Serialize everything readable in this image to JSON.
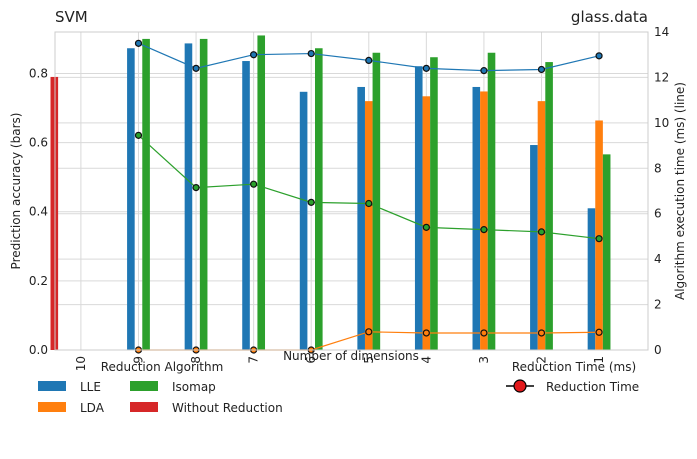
{
  "chart_data": {
    "type": "bar",
    "title_left": "SVM",
    "title_right": "glass.data",
    "xlabel": "Number of dimensions",
    "ylabel": "Prediction accuracy (bars)",
    "y2label": "Algorithm execution time (ms) (line)",
    "categories": [
      "10",
      "9",
      "8",
      "7",
      "6",
      "5",
      "4",
      "3",
      "2",
      "1"
    ],
    "ylim": [
      0,
      0.92
    ],
    "y2lim": [
      0,
      14
    ],
    "yticks": [
      "0.0",
      "0.2",
      "0.4",
      "0.6",
      "0.8"
    ],
    "y2ticks": [
      "0",
      "2",
      "4",
      "6",
      "8",
      "10",
      "12",
      "14"
    ],
    "grid": true,
    "series": [
      {
        "name": "LLE",
        "color": "#1f77b4",
        "values": [
          null,
          0.873,
          0.887,
          0.836,
          0.747,
          0.761,
          0.821,
          0.761,
          0.593,
          0.41
        ]
      },
      {
        "name": "LDA",
        "color": "#ff7f0e",
        "values": [
          null,
          null,
          null,
          null,
          null,
          0.72,
          0.734,
          0.748,
          0.72,
          0.664
        ]
      },
      {
        "name": "Isomap",
        "color": "#2ca02c",
        "values": [
          null,
          0.9,
          0.9,
          0.91,
          0.873,
          0.86,
          0.847,
          0.86,
          0.833,
          0.566
        ]
      },
      {
        "name": "Without Reduction",
        "color": "#d62728",
        "values": [
          0.79,
          null,
          null,
          null,
          null,
          null,
          null,
          null,
          null,
          null
        ]
      }
    ],
    "lines": [
      {
        "color": "#1f77b4",
        "values": [
          null,
          13.5,
          12.4,
          13.0,
          13.05,
          12.75,
          12.4,
          12.3,
          12.35,
          12.95
        ]
      },
      {
        "color": "#ff7f0e",
        "values": [
          null,
          0.0,
          0.0,
          0.0,
          0.0,
          0.8,
          0.75,
          0.75,
          0.75,
          0.78
        ]
      },
      {
        "color": "#2ca02c",
        "values": [
          null,
          9.45,
          7.15,
          7.3,
          6.5,
          6.45,
          5.4,
          5.3,
          5.2,
          4.9
        ]
      }
    ],
    "legend_left": {
      "title": "Reduction Algorithm",
      "placement": "bottom-left",
      "items": [
        {
          "label": "LLE",
          "color": "#1f77b4"
        },
        {
          "label": "Isomap",
          "color": "#2ca02c"
        },
        {
          "label": "LDA",
          "color": "#ff7f0e"
        },
        {
          "label": "Without Reduction",
          "color": "#d62728"
        }
      ]
    },
    "legend_right": {
      "title": "Reduction Time (ms)",
      "placement": "bottom-right",
      "label": "Reduction Time",
      "marker_color": "#e31a1c"
    }
  }
}
